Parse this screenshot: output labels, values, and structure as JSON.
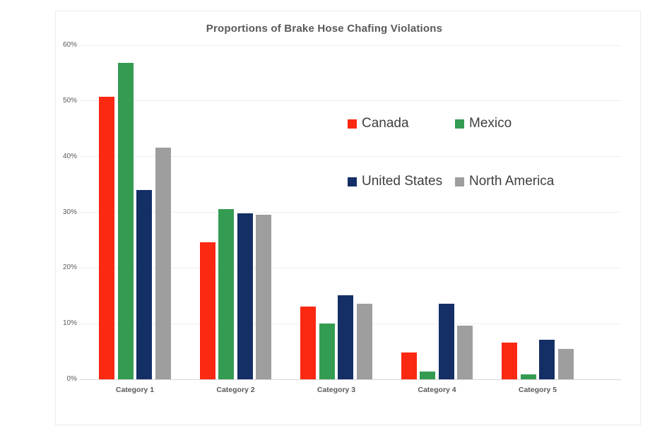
{
  "chart_data": {
    "type": "bar",
    "title": "Proportions of Brake Hose Chafing Violations",
    "categories": [
      "Category 1",
      "Category 2",
      "Category 3",
      "Category 4",
      "Category 5"
    ],
    "series": [
      {
        "name": "Canada",
        "color": "#fb2912",
        "values": [
          50.8,
          24.6,
          13.1,
          4.8,
          6.6
        ]
      },
      {
        "name": "Mexico",
        "color": "#339c52",
        "values": [
          56.8,
          30.6,
          10.0,
          1.4,
          0.9
        ]
      },
      {
        "name": "United States",
        "color": "#142f66",
        "values": [
          34.0,
          29.8,
          15.1,
          13.6,
          7.1
        ]
      },
      {
        "name": "North America",
        "color": "#9e9e9e",
        "values": [
          41.6,
          29.6,
          13.6,
          9.6,
          5.5
        ]
      }
    ],
    "xlabel": "",
    "ylabel": "",
    "ylim": [
      0,
      60
    ],
    "ytick_values": [
      0,
      10,
      20,
      30,
      40,
      50,
      60
    ],
    "ytick_labels": [
      "0%",
      "10%",
      "20%",
      "30%",
      "40%",
      "50%",
      "60%"
    ],
    "grid": "horizontal",
    "legend_position": "inside-upper-right",
    "legend_rows": [
      [
        "Canada",
        "Mexico"
      ],
      [
        "United States",
        "North America"
      ]
    ]
  },
  "colors": {
    "title_text": "#595959",
    "axis_text": "#595959",
    "legend_text": "#3f3f3f",
    "gridline": "#efefef",
    "baseline": "#d8d8d8",
    "card_background": "#ffffff"
  }
}
